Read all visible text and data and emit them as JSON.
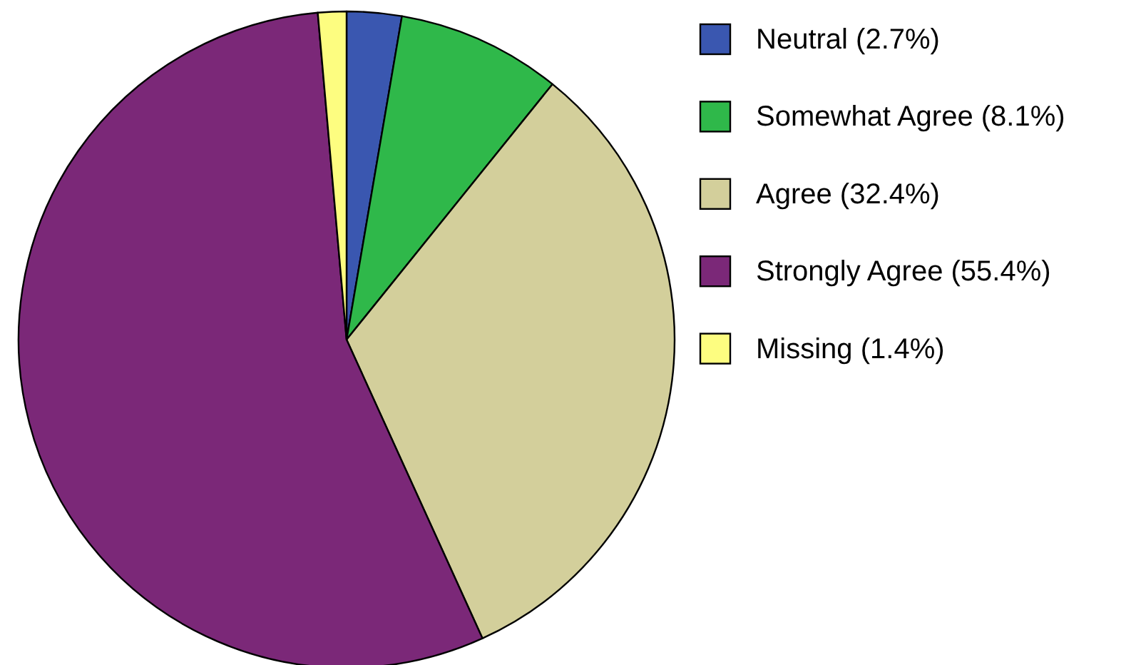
{
  "chart_data": {
    "type": "pie",
    "categories": [
      "Neutral (2.7%)",
      "Somewhat Agree (8.1%)",
      "Agree (32.4%)",
      "Strongly Agree (55.4%)",
      "Missing (1.4%)"
    ],
    "values": [
      2.7,
      8.1,
      32.4,
      55.4,
      1.4
    ],
    "colors": [
      "#3a57b0",
      "#2fb84a",
      "#d3cf9b",
      "#7b2878",
      "#fdfd80"
    ],
    "legend": "right"
  }
}
